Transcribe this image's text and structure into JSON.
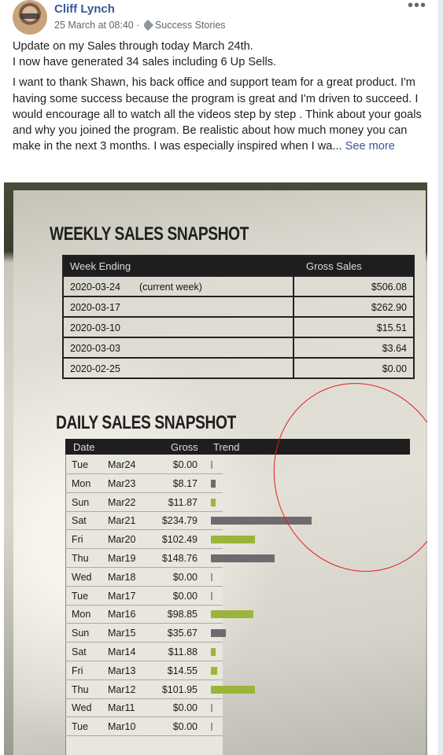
{
  "post": {
    "author": "Cliff Lynch",
    "timestamp": "25 March at 08:40",
    "separator": "·",
    "group_tag": "Success Stories",
    "more_icon": "•••",
    "para1_line1": "Update on my Sales through today March 24th.",
    "para1_line2": "I now have generated 34 sales including 6 Up Sells.",
    "para2": "I want to thank Shawn, his back office and support team for a great product. I'm having some success because the program is great and I'm driven to succeed. I would encourage all to watch all the videos step by step . Think about your goals and why you joined the program. Be realistic about how much money you can make in the next 3 months. I was especially inspired when I wa...",
    "see_more": "See more"
  },
  "photo": {
    "weekly_title": "WEEKLY SALES SNAPSHOT",
    "weekly_headers": [
      "Week Ending",
      "Gross Sales"
    ],
    "weekly_rows": [
      {
        "week": "2020-03-24",
        "note": "(current week)",
        "gross": "$506.08"
      },
      {
        "week": "2020-03-17",
        "note": "",
        "gross": "$262.90"
      },
      {
        "week": "2020-03-10",
        "note": "",
        "gross": "$15.51"
      },
      {
        "week": "2020-03-03",
        "note": "",
        "gross": "$3.64"
      },
      {
        "week": "2020-02-25",
        "note": "",
        "gross": "$0.00"
      }
    ],
    "daily_title": "DAILY SALES SNAPSHOT",
    "daily_headers": [
      "Date",
      "Gross",
      "Trend"
    ],
    "daily_rows": [
      {
        "day": "Tue",
        "date": "Mar24",
        "gross": "$0.00",
        "trend": 0.0
      },
      {
        "day": "Mon",
        "date": "Mar23",
        "gross": "$8.17",
        "trend": 8.17
      },
      {
        "day": "Sun",
        "date": "Mar22",
        "gross": "$11.87",
        "trend": 11.87
      },
      {
        "day": "Sat",
        "date": "Mar21",
        "gross": "$234.79",
        "trend": 234.79
      },
      {
        "day": "Fri",
        "date": "Mar20",
        "gross": "$102.49",
        "trend": 102.49
      },
      {
        "day": "Thu",
        "date": "Mar19",
        "gross": "$148.76",
        "trend": 148.76
      },
      {
        "day": "Wed",
        "date": "Mar18",
        "gross": "$0.00",
        "trend": 0.0
      },
      {
        "day": "Tue",
        "date": "Mar17",
        "gross": "$0.00",
        "trend": 0.0
      },
      {
        "day": "Mon",
        "date": "Mar16",
        "gross": "$98.85",
        "trend": 98.85
      },
      {
        "day": "Sun",
        "date": "Mar15",
        "gross": "$35.67",
        "trend": 35.67
      },
      {
        "day": "Sat",
        "date": "Mar14",
        "gross": "$11.88",
        "trend": 11.88
      },
      {
        "day": "Fri",
        "date": "Mar13",
        "gross": "$14.55",
        "trend": 14.55
      },
      {
        "day": "Thu",
        "date": "Mar12",
        "gross": "$101.95",
        "trend": 101.95
      },
      {
        "day": "Wed",
        "date": "Mar11",
        "gross": "$0.00",
        "trend": 0.0
      },
      {
        "day": "Tue",
        "date": "Mar10",
        "gross": "$0.00",
        "trend": 0.0
      }
    ],
    "colors": {
      "bar_green": "#9bb53a",
      "bar_gray": "#6f6a6e",
      "circle": "#e02020"
    }
  }
}
